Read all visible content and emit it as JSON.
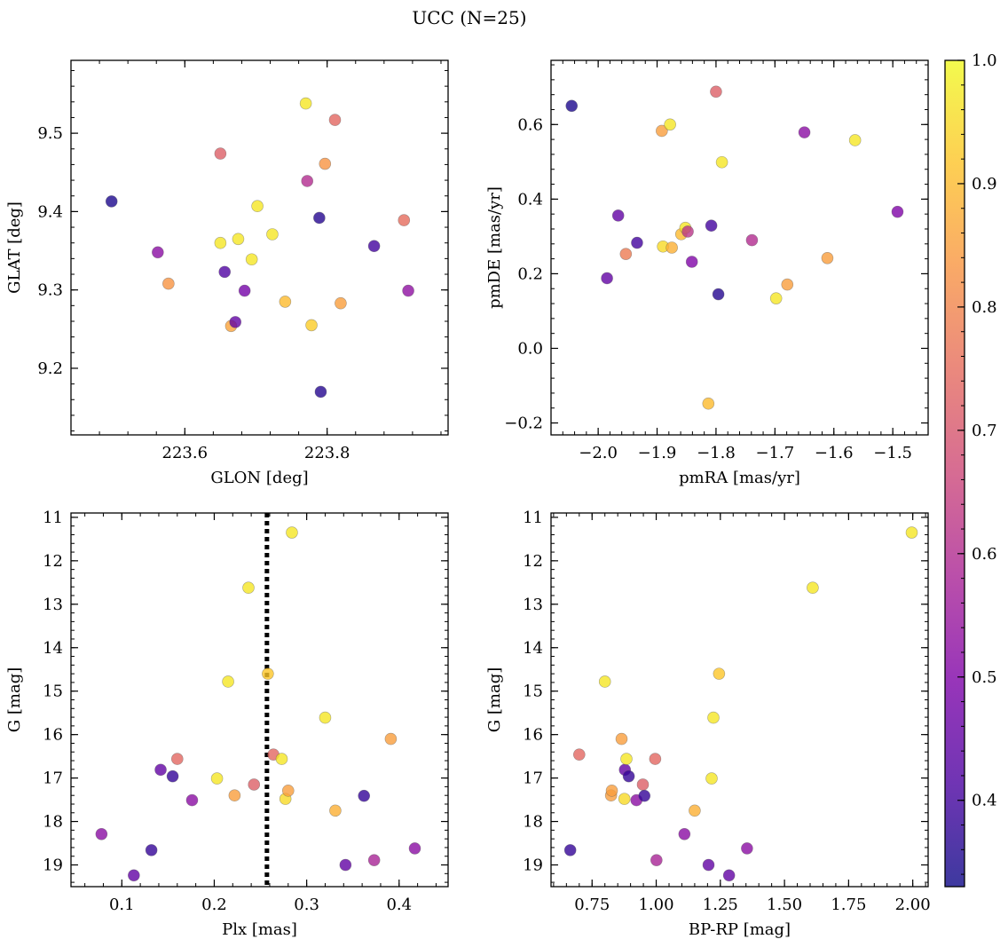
{
  "figure": {
    "title": "UCC (N=25)"
  },
  "colorbar": {
    "colormap": "plasma",
    "range": [
      0.33,
      1.0
    ],
    "ticks": [
      0.4,
      0.5,
      0.6,
      0.7,
      0.8,
      0.9,
      1.0
    ],
    "tick_labels": [
      "0.4",
      "0.5",
      "0.6",
      "0.7",
      "0.8",
      "0.9",
      "1.0"
    ]
  },
  "chart_data": [
    {
      "type": "scatter",
      "id": "glon-glat",
      "xlabel": "GLON [deg]",
      "ylabel": "GLAT [deg]",
      "xlim": [
        223.44,
        223.97
      ],
      "ylim": [
        9.115,
        9.593
      ],
      "x_ticks": [
        223.6,
        223.8
      ],
      "x_tick_labels": [
        "223.6",
        "223.8"
      ],
      "y_ticks": [
        9.2,
        9.3,
        9.4,
        9.5
      ],
      "y_tick_labels": [
        "9.2",
        "9.3",
        "9.4",
        "9.5"
      ],
      "points": [
        {
          "x": 223.497,
          "y": 9.413,
          "c": 0.35
        },
        {
          "x": 223.562,
          "y": 9.348,
          "c": 0.52
        },
        {
          "x": 223.577,
          "y": 9.308,
          "c": 0.83
        },
        {
          "x": 223.65,
          "y": 9.474,
          "c": 0.72
        },
        {
          "x": 223.65,
          "y": 9.36,
          "c": 0.97
        },
        {
          "x": 223.656,
          "y": 9.323,
          "c": 0.42
        },
        {
          "x": 223.665,
          "y": 9.254,
          "c": 0.86
        },
        {
          "x": 223.671,
          "y": 9.259,
          "c": 0.45
        },
        {
          "x": 223.675,
          "y": 9.365,
          "c": 0.97
        },
        {
          "x": 223.684,
          "y": 9.299,
          "c": 0.48
        },
        {
          "x": 223.694,
          "y": 9.339,
          "c": 0.97
        },
        {
          "x": 223.702,
          "y": 9.407,
          "c": 0.97
        },
        {
          "x": 223.723,
          "y": 9.371,
          "c": 0.97
        },
        {
          "x": 223.741,
          "y": 9.285,
          "c": 0.9
        },
        {
          "x": 223.77,
          "y": 9.538,
          "c": 0.97
        },
        {
          "x": 223.772,
          "y": 9.439,
          "c": 0.6
        },
        {
          "x": 223.778,
          "y": 9.255,
          "c": 0.93
        },
        {
          "x": 223.789,
          "y": 9.392,
          "c": 0.36
        },
        {
          "x": 223.791,
          "y": 9.17,
          "c": 0.36
        },
        {
          "x": 223.797,
          "y": 9.461,
          "c": 0.83
        },
        {
          "x": 223.811,
          "y": 9.517,
          "c": 0.74
        },
        {
          "x": 223.819,
          "y": 9.283,
          "c": 0.85
        },
        {
          "x": 223.866,
          "y": 9.356,
          "c": 0.4
        },
        {
          "x": 223.908,
          "y": 9.389,
          "c": 0.75
        },
        {
          "x": 223.914,
          "y": 9.299,
          "c": 0.53
        }
      ]
    },
    {
      "type": "scatter",
      "id": "pmra-pmde",
      "xlabel": "pmRA [mas/yr]",
      "ylabel": "pmDE [mas/yr]",
      "xlim": [
        -2.08,
        -1.44
      ],
      "ylim": [
        -0.232,
        0.772
      ],
      "x_ticks": [
        -2.0,
        -1.9,
        -1.8,
        -1.7,
        -1.6,
        -1.5
      ],
      "x_tick_labels": [
        "−2.0",
        "−1.9",
        "−1.8",
        "−1.7",
        "−1.6",
        "−1.5"
      ],
      "y_ticks": [
        -0.2,
        0.0,
        0.2,
        0.4,
        0.6
      ],
      "y_tick_labels": [
        "−0.2",
        "0.0",
        "0.2",
        "0.4",
        "0.6"
      ],
      "points": [
        {
          "x": -2.045,
          "y": 0.65,
          "c": 0.35
        },
        {
          "x": -1.985,
          "y": 0.188,
          "c": 0.45
        },
        {
          "x": -1.966,
          "y": 0.356,
          "c": 0.45
        },
        {
          "x": -1.953,
          "y": 0.253,
          "c": 0.78
        },
        {
          "x": -1.934,
          "y": 0.283,
          "c": 0.4
        },
        {
          "x": -1.892,
          "y": 0.583,
          "c": 0.85
        },
        {
          "x": -1.89,
          "y": 0.273,
          "c": 0.95
        },
        {
          "x": -1.878,
          "y": 0.6,
          "c": 0.97
        },
        {
          "x": -1.875,
          "y": 0.27,
          "c": 0.88
        },
        {
          "x": -1.859,
          "y": 0.306,
          "c": 0.9
        },
        {
          "x": -1.852,
          "y": 0.323,
          "c": 0.97
        },
        {
          "x": -1.848,
          "y": 0.313,
          "c": 0.62
        },
        {
          "x": -1.841,
          "y": 0.232,
          "c": 0.5
        },
        {
          "x": -1.813,
          "y": -0.148,
          "c": 0.9
        },
        {
          "x": -1.808,
          "y": 0.329,
          "c": 0.4
        },
        {
          "x": -1.8,
          "y": 0.688,
          "c": 0.72
        },
        {
          "x": -1.796,
          "y": 0.145,
          "c": 0.36
        },
        {
          "x": -1.79,
          "y": 0.499,
          "c": 0.97
        },
        {
          "x": -1.739,
          "y": 0.29,
          "c": 0.6
        },
        {
          "x": -1.698,
          "y": 0.134,
          "c": 0.97
        },
        {
          "x": -1.679,
          "y": 0.171,
          "c": 0.85
        },
        {
          "x": -1.65,
          "y": 0.579,
          "c": 0.52
        },
        {
          "x": -1.611,
          "y": 0.242,
          "c": 0.85
        },
        {
          "x": -1.564,
          "y": 0.558,
          "c": 0.97
        },
        {
          "x": -1.492,
          "y": 0.366,
          "c": 0.5
        }
      ]
    },
    {
      "type": "scatter",
      "id": "plx-g",
      "xlabel": "Plx [mas]",
      "ylabel": "G [mag]",
      "xlim": [
        0.045,
        0.453
      ],
      "ylim": [
        19.5,
        10.9
      ],
      "y_inverted": true,
      "vline": {
        "x": 0.257,
        "style": "dotted"
      },
      "x_ticks": [
        0.1,
        0.2,
        0.3,
        0.4
      ],
      "x_tick_labels": [
        "0.1",
        "0.2",
        "0.3",
        "0.4"
      ],
      "y_ticks": [
        11,
        12,
        13,
        14,
        15,
        16,
        17,
        18,
        19
      ],
      "y_tick_labels": [
        "11",
        "12",
        "13",
        "14",
        "15",
        "16",
        "17",
        "18",
        "19"
      ],
      "points": [
        {
          "x": 0.078,
          "y": 18.29,
          "c": 0.52
        },
        {
          "x": 0.113,
          "y": 19.24,
          "c": 0.45
        },
        {
          "x": 0.132,
          "y": 18.66,
          "c": 0.38
        },
        {
          "x": 0.142,
          "y": 16.81,
          "c": 0.45
        },
        {
          "x": 0.155,
          "y": 16.96,
          "c": 0.38
        },
        {
          "x": 0.16,
          "y": 16.56,
          "c": 0.74
        },
        {
          "x": 0.176,
          "y": 17.51,
          "c": 0.52
        },
        {
          "x": 0.203,
          "y": 17.01,
          "c": 0.97
        },
        {
          "x": 0.215,
          "y": 14.78,
          "c": 0.97
        },
        {
          "x": 0.222,
          "y": 17.4,
          "c": 0.85
        },
        {
          "x": 0.237,
          "y": 12.62,
          "c": 0.97
        },
        {
          "x": 0.243,
          "y": 17.15,
          "c": 0.72
        },
        {
          "x": 0.258,
          "y": 14.6,
          "c": 0.92
        },
        {
          "x": 0.264,
          "y": 16.46,
          "c": 0.74
        },
        {
          "x": 0.273,
          "y": 16.56,
          "c": 0.97
        },
        {
          "x": 0.277,
          "y": 17.48,
          "c": 0.95
        },
        {
          "x": 0.28,
          "y": 17.29,
          "c": 0.85
        },
        {
          "x": 0.284,
          "y": 11.35,
          "c": 0.97
        },
        {
          "x": 0.32,
          "y": 15.61,
          "c": 0.97
        },
        {
          "x": 0.331,
          "y": 17.75,
          "c": 0.88
        },
        {
          "x": 0.342,
          "y": 19.0,
          "c": 0.45
        },
        {
          "x": 0.362,
          "y": 17.41,
          "c": 0.38
        },
        {
          "x": 0.373,
          "y": 18.89,
          "c": 0.58
        },
        {
          "x": 0.391,
          "y": 16.1,
          "c": 0.85
        },
        {
          "x": 0.417,
          "y": 18.62,
          "c": 0.52
        }
      ]
    },
    {
      "type": "scatter",
      "id": "bprp-g",
      "xlabel": "BP-RP [mag]",
      "ylabel": "G [mag]",
      "xlim": [
        0.59,
        2.06
      ],
      "ylim": [
        19.5,
        10.9
      ],
      "y_inverted": true,
      "x_ticks": [
        0.75,
        1.0,
        1.25,
        1.5,
        1.75,
        2.0
      ],
      "x_tick_labels": [
        "0.75",
        "1.00",
        "1.25",
        "1.50",
        "1.75",
        "2.00"
      ],
      "y_ticks": [
        11,
        12,
        13,
        14,
        15,
        16,
        17,
        18,
        19
      ],
      "y_tick_labels": [
        "11",
        "12",
        "13",
        "14",
        "15",
        "16",
        "17",
        "18",
        "19"
      ],
      "points": [
        {
          "x": 0.665,
          "y": 18.66,
          "c": 0.38
        },
        {
          "x": 0.7,
          "y": 16.46,
          "c": 0.74
        },
        {
          "x": 0.8,
          "y": 14.78,
          "c": 0.97
        },
        {
          "x": 0.824,
          "y": 17.4,
          "c": 0.85
        },
        {
          "x": 0.827,
          "y": 17.29,
          "c": 0.85
        },
        {
          "x": 0.865,
          "y": 16.1,
          "c": 0.85
        },
        {
          "x": 0.876,
          "y": 17.48,
          "c": 0.95
        },
        {
          "x": 0.878,
          "y": 16.81,
          "c": 0.45
        },
        {
          "x": 0.884,
          "y": 16.56,
          "c": 0.97
        },
        {
          "x": 0.893,
          "y": 16.96,
          "c": 0.38
        },
        {
          "x": 0.923,
          "y": 17.51,
          "c": 0.52
        },
        {
          "x": 0.948,
          "y": 17.15,
          "c": 0.72
        },
        {
          "x": 0.954,
          "y": 17.41,
          "c": 0.38
        },
        {
          "x": 0.996,
          "y": 16.56,
          "c": 0.74
        },
        {
          "x": 1.001,
          "y": 18.89,
          "c": 0.58
        },
        {
          "x": 1.11,
          "y": 18.29,
          "c": 0.52
        },
        {
          "x": 1.15,
          "y": 17.75,
          "c": 0.88
        },
        {
          "x": 1.204,
          "y": 19.0,
          "c": 0.45
        },
        {
          "x": 1.216,
          "y": 17.01,
          "c": 0.97
        },
        {
          "x": 1.223,
          "y": 15.61,
          "c": 0.97
        },
        {
          "x": 1.245,
          "y": 14.6,
          "c": 0.92
        },
        {
          "x": 1.284,
          "y": 19.24,
          "c": 0.45
        },
        {
          "x": 1.354,
          "y": 18.62,
          "c": 0.52
        },
        {
          "x": 1.61,
          "y": 12.62,
          "c": 0.97
        },
        {
          "x": 1.996,
          "y": 11.35,
          "c": 0.97
        }
      ]
    }
  ]
}
